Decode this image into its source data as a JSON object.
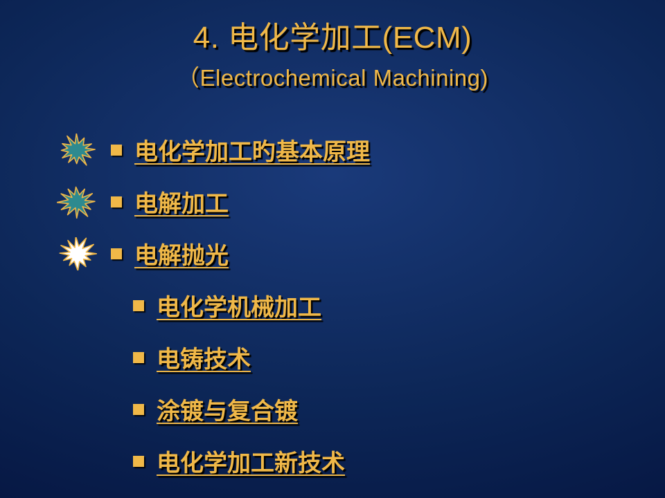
{
  "title": {
    "main": "4. 电化学加工(ECM)",
    "sub": "（Electrochemical Machining)"
  },
  "colors": {
    "text": "#f0b848",
    "shadow": "#000000",
    "bullet": "#f0b848",
    "bg_center": "#1a3a7a",
    "bg_edge": "#020a28"
  },
  "typography": {
    "title_main_fontsize": 44,
    "title_sub_fontsize": 33,
    "item_fontsize": 34,
    "item_weight": 600
  },
  "items": [
    {
      "label": "电化学加工旳基本原理",
      "indent": false,
      "burst": true,
      "burst_fill": "#2e8a8f",
      "burst_stroke": "#f0b848"
    },
    {
      "label": "电解加工",
      "indent": false,
      "burst": true,
      "burst_fill": "#2e8a8f",
      "burst_stroke": "#f0b848"
    },
    {
      "label": "电解抛光",
      "indent": false,
      "burst": true,
      "burst_fill": "#ffffff",
      "burst_stroke": "#f0b848"
    },
    {
      "label": "电化学机械加工",
      "indent": true,
      "burst": false
    },
    {
      "label": "电铸技术",
      "indent": true,
      "burst": false
    },
    {
      "label": "涂镀与复合镀",
      "indent": true,
      "burst": false
    },
    {
      "label": "电化学加工新技术",
      "indent": true,
      "burst": false
    }
  ]
}
